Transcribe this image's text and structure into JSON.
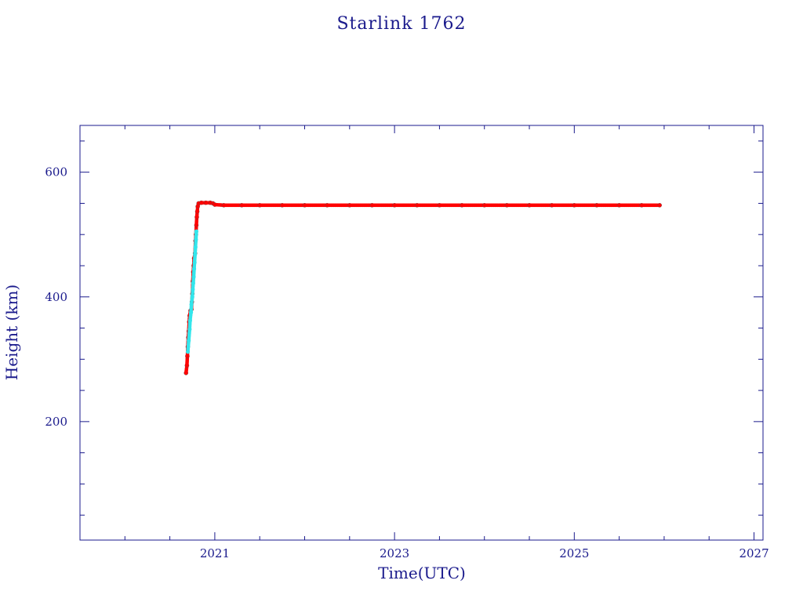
{
  "chart_data": {
    "type": "scatter",
    "title": "Starlink 1762",
    "xlabel": "Time(UTC)",
    "ylabel": "Height (km)",
    "xlim": [
      2019.5,
      2027.1
    ],
    "ylim": [
      10,
      675
    ],
    "x_ticks": [
      2021,
      2023,
      2025,
      2027
    ],
    "y_ticks": [
      200,
      400,
      600
    ],
    "x_minor_step": 0.5,
    "y_minor_step": 50,
    "grid": false,
    "colors": {
      "axis": "#1a1a8c",
      "primary": "#ff0000",
      "secondary": "#33e6ec",
      "marker_edge": "#555555"
    },
    "series": [
      {
        "color": "#ff0000",
        "points": [
          [
            2020.68,
            278
          ],
          [
            2020.69,
            290
          ],
          [
            2020.695,
            305
          ],
          [
            2020.7,
            320
          ],
          [
            2020.705,
            335
          ],
          [
            2020.71,
            345
          ],
          [
            2020.715,
            360
          ],
          [
            2020.72,
            370
          ],
          [
            2020.73,
            378
          ],
          [
            2020.74,
            380
          ],
          [
            2020.745,
            392
          ],
          [
            2020.75,
            405
          ],
          [
            2020.755,
            425
          ],
          [
            2020.76,
            440
          ],
          [
            2020.765,
            450
          ],
          [
            2020.77,
            462
          ],
          [
            2020.78,
            470
          ],
          [
            2020.785,
            490
          ],
          [
            2020.79,
            500
          ],
          [
            2020.795,
            515
          ],
          [
            2020.8,
            528
          ],
          [
            2020.805,
            537
          ],
          [
            2020.81,
            545
          ],
          [
            2020.82,
            550
          ],
          [
            2020.85,
            551
          ],
          [
            2020.9,
            551
          ],
          [
            2020.95,
            551
          ],
          [
            2020.98,
            550
          ],
          [
            2021.0,
            548
          ],
          [
            2021.1,
            547
          ],
          [
            2021.3,
            547
          ],
          [
            2021.5,
            547
          ],
          [
            2021.75,
            547
          ],
          [
            2022.0,
            547
          ],
          [
            2022.25,
            547
          ],
          [
            2022.5,
            547
          ],
          [
            2022.75,
            547
          ],
          [
            2023.0,
            547
          ],
          [
            2023.25,
            547
          ],
          [
            2023.5,
            547
          ],
          [
            2023.75,
            547
          ],
          [
            2024.0,
            547
          ],
          [
            2024.25,
            547
          ],
          [
            2024.5,
            547
          ],
          [
            2024.75,
            547
          ],
          [
            2025.0,
            547
          ],
          [
            2025.25,
            547
          ],
          [
            2025.5,
            547
          ],
          [
            2025.75,
            547
          ],
          [
            2025.95,
            547
          ]
        ]
      },
      {
        "color": "#33e6ec",
        "points": [
          [
            2020.7,
            312
          ],
          [
            2020.71,
            330
          ],
          [
            2020.72,
            348
          ],
          [
            2020.725,
            362
          ],
          [
            2020.735,
            375
          ],
          [
            2020.74,
            388
          ],
          [
            2020.75,
            400
          ],
          [
            2020.755,
            412
          ],
          [
            2020.76,
            422
          ],
          [
            2020.765,
            432
          ],
          [
            2020.77,
            445
          ],
          [
            2020.775,
            455
          ],
          [
            2020.78,
            468
          ],
          [
            2020.785,
            480
          ],
          [
            2020.79,
            492
          ],
          [
            2020.795,
            505
          ]
        ]
      }
    ]
  }
}
